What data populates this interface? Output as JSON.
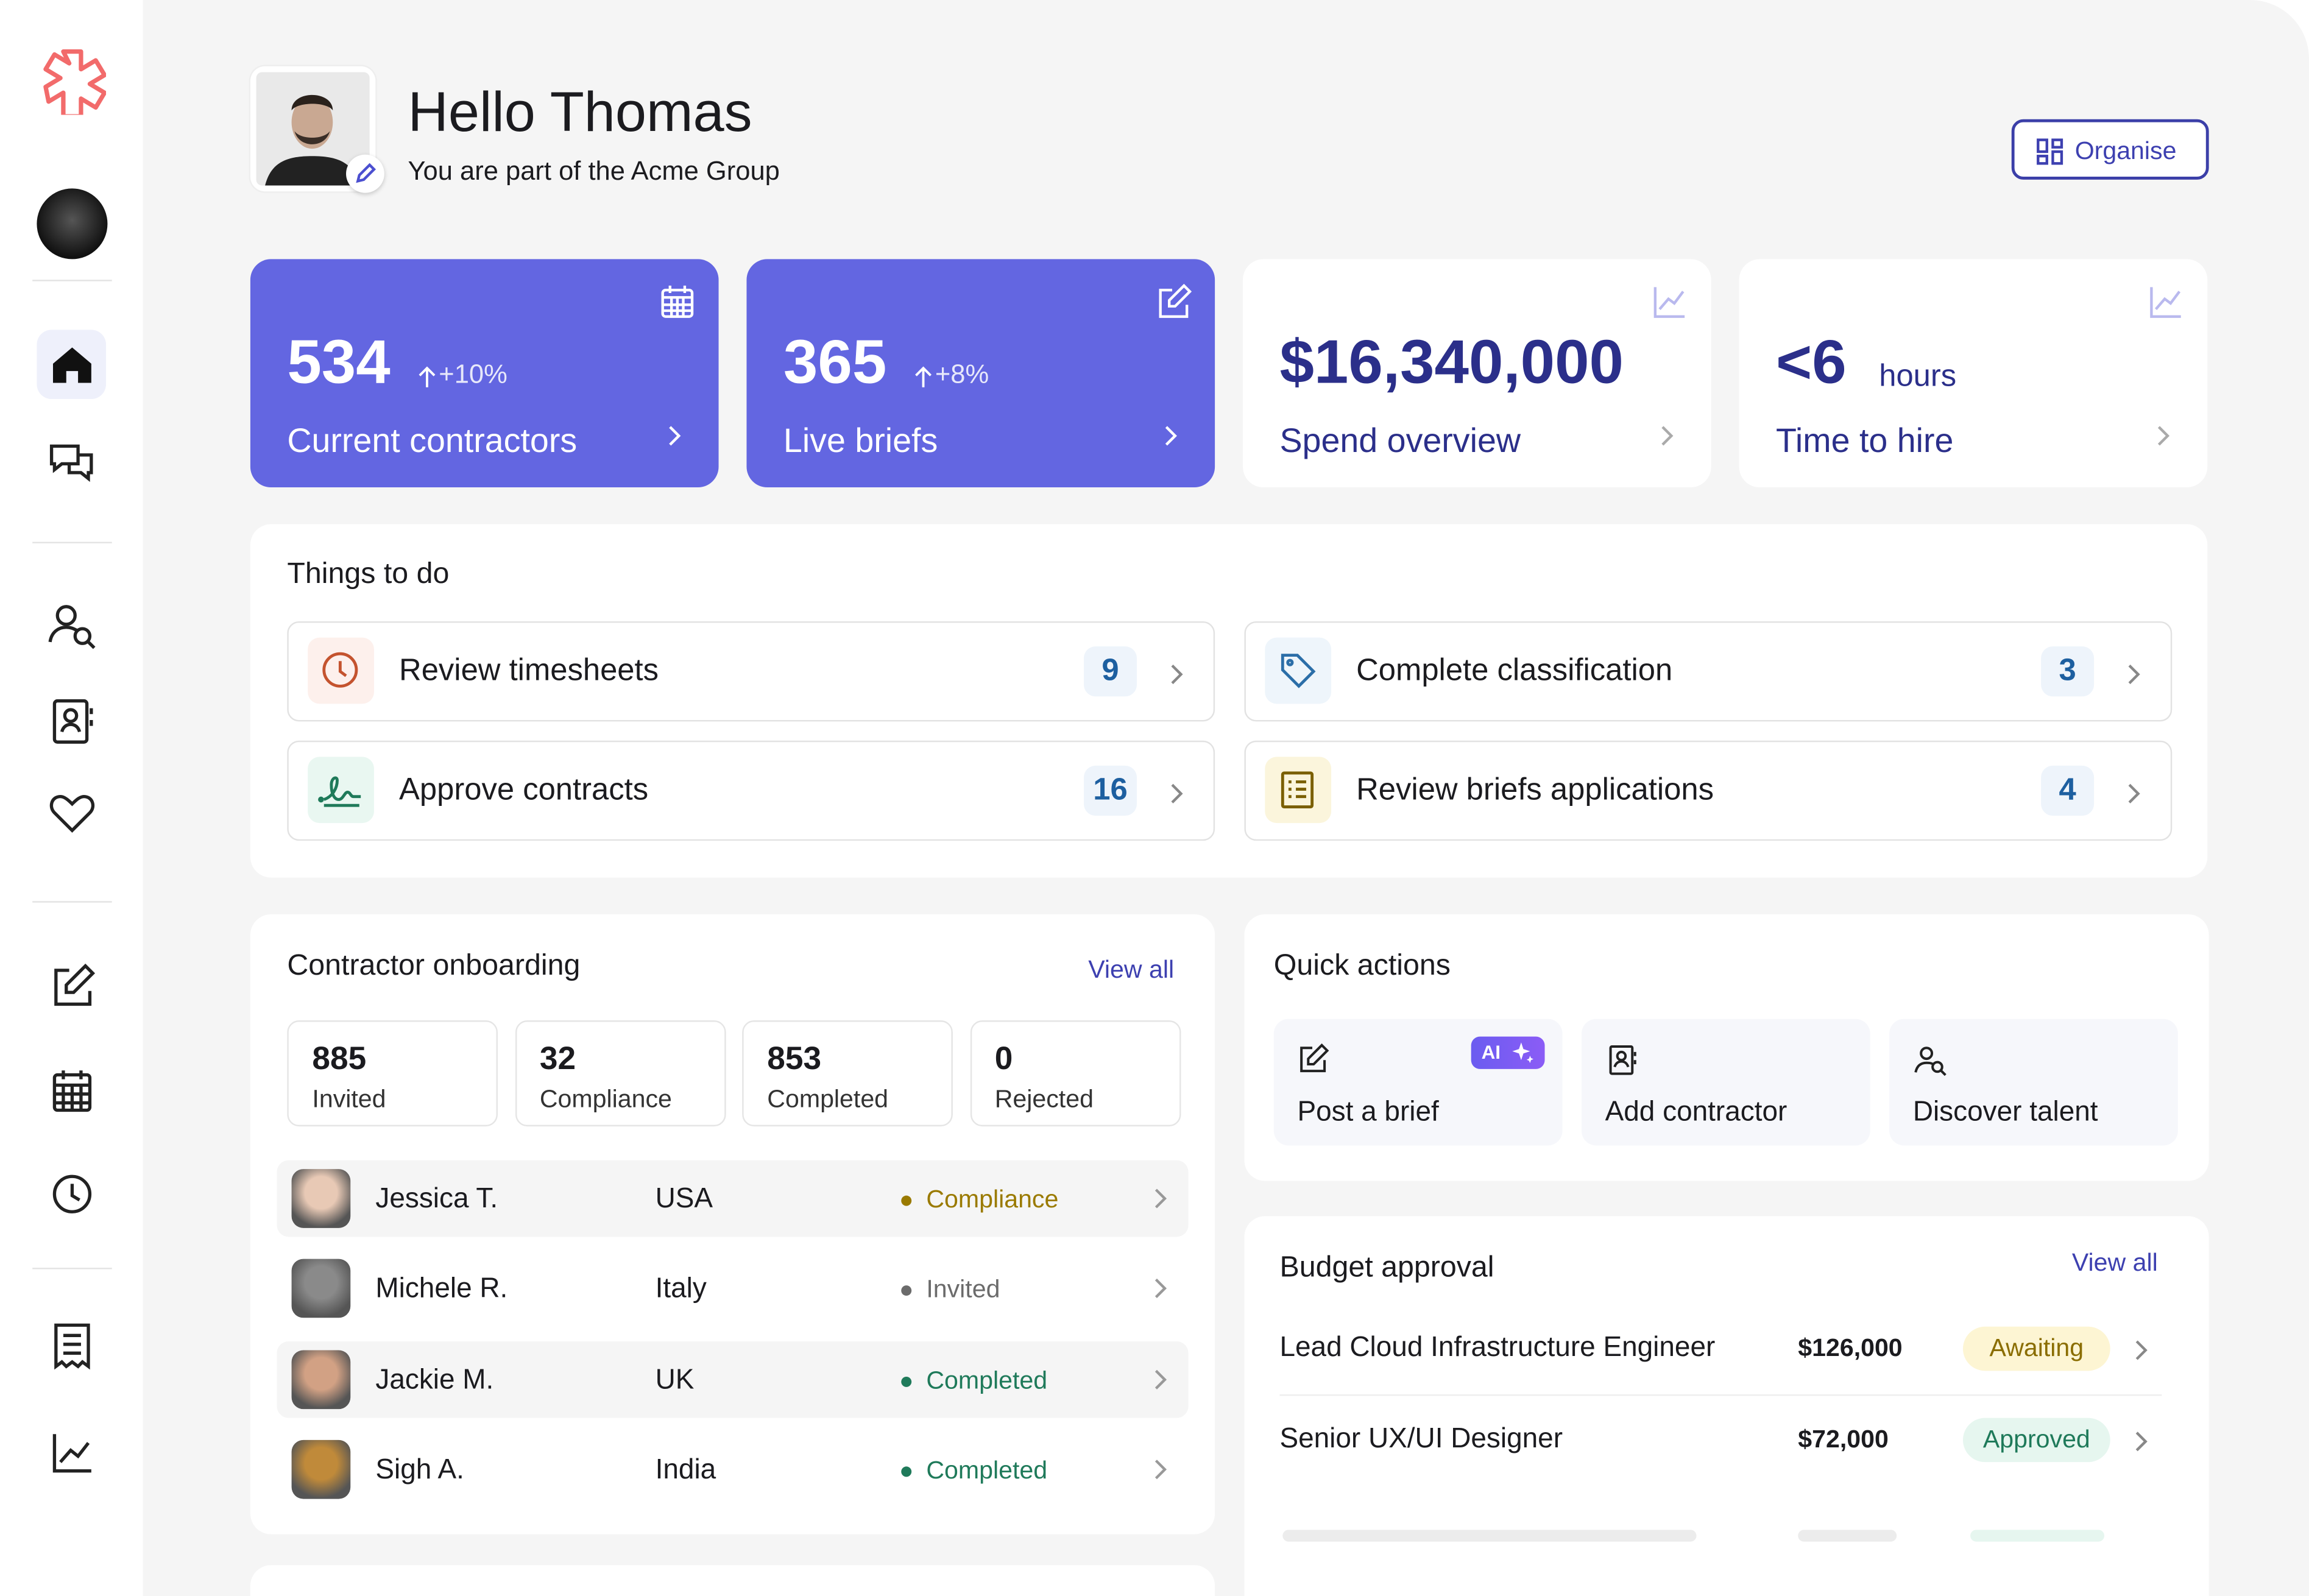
{
  "header": {
    "greeting": "Hello Thomas",
    "subtitle": "You are part of the Acme Group",
    "button": "Organise"
  },
  "stats": [
    {
      "value": "534",
      "change": "+10%",
      "label": "Current contractors"
    },
    {
      "value": "365",
      "change": "+8%",
      "label": "Live briefs"
    },
    {
      "value": "$16,340,000",
      "label": "Spend overview"
    },
    {
      "value": "<6",
      "unit": "hours",
      "label": "Time to hire"
    }
  ],
  "todo": {
    "title": "Things to do",
    "items": [
      {
        "label": "Review timesheets",
        "count": 9
      },
      {
        "label": "Complete classification",
        "count": 3
      },
      {
        "label": "Approve contracts",
        "count": 16
      },
      {
        "label": "Review briefs applications",
        "count": 4
      }
    ]
  },
  "onboarding": {
    "title": "Contractor onboarding",
    "view_all": "View all",
    "stats": [
      {
        "value": 885,
        "label": "Invited"
      },
      {
        "value": 32,
        "label": "Compliance"
      },
      {
        "value": 853,
        "label": "Completed"
      },
      {
        "value": 0,
        "label": "Rejected"
      }
    ],
    "rows": [
      {
        "name": "Jessica T.",
        "country": "USA",
        "status": "Compliance"
      },
      {
        "name": "Michele R.",
        "country": "Italy",
        "status": "Invited"
      },
      {
        "name": "Jackie M.",
        "country": "UK",
        "status": "Completed"
      },
      {
        "name": "Sigh A.",
        "country": "India",
        "status": "Completed"
      }
    ]
  },
  "quick_actions": {
    "title": "Quick actions",
    "badge": "AI",
    "items": [
      {
        "label": "Post a brief"
      },
      {
        "label": "Add contractor"
      },
      {
        "label": "Discover talent"
      }
    ]
  },
  "budget": {
    "title": "Budget approval",
    "view_all": "View all",
    "rows": [
      {
        "role": "Lead Cloud Infrastructure Engineer",
        "amount": "$126,000",
        "status": "Awaiting"
      },
      {
        "role": "Senior UX/UI Designer",
        "amount": "$72,000",
        "status": "Approved"
      }
    ]
  }
}
